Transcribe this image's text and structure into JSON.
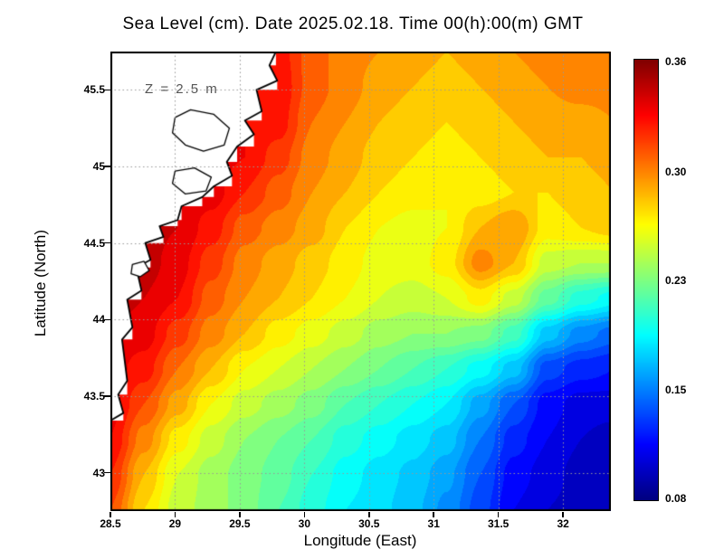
{
  "title": "Sea Level (cm). Date 2025.02.18. Time 00(h):00(m) GMT",
  "annotation": {
    "text": "Z = 2.5 m"
  },
  "axes": {
    "x": {
      "label": "Longitude (East)",
      "tick_labels": [
        "28.5",
        "29",
        "29.5",
        "30",
        "30.5",
        "31",
        "31.5",
        "32"
      ],
      "range": [
        28.5,
        32.37
      ]
    },
    "y": {
      "label": "Latitude (North)",
      "tick_labels": [
        "43",
        "43.5",
        "44",
        "44.5",
        "45",
        "45.5"
      ],
      "range": [
        42.75,
        45.75
      ]
    }
  },
  "chart_data": {
    "type": "heatmap",
    "title": "Sea Level (cm). Date 2025.02.18. Time 00(h):00(m) GMT",
    "xlabel": "Longitude (East)",
    "ylabel": "Latitude (North)",
    "units": "cm",
    "colormap": "jet",
    "grid": true,
    "x_lon": [
      28.5,
      28.76,
      29.02,
      29.28,
      29.54,
      29.8,
      30.06,
      30.32,
      30.58,
      30.84,
      31.1,
      31.36,
      31.62,
      31.88,
      32.14,
      32.4
    ],
    "y_lat": [
      45.75,
      45.52,
      45.29,
      45.06,
      44.83,
      44.6,
      44.37,
      44.14,
      43.91,
      43.68,
      43.45,
      43.22,
      42.99,
      42.76
    ],
    "values": [
      [
        0.34,
        0.34,
        0.34,
        0.338,
        0.335,
        0.33,
        0.31,
        0.3,
        0.295,
        0.29,
        0.285,
        0.29,
        0.295,
        0.3,
        0.3,
        0.3
      ],
      [
        0.34,
        0.34,
        0.34,
        0.338,
        0.335,
        0.333,
        0.31,
        0.3,
        0.29,
        0.285,
        0.28,
        0.285,
        0.29,
        0.295,
        0.3,
        0.3
      ],
      [
        0.342,
        0.342,
        0.34,
        0.338,
        0.335,
        0.33,
        0.305,
        0.295,
        0.285,
        0.28,
        0.275,
        0.28,
        0.285,
        0.29,
        0.29,
        0.295
      ],
      [
        0.345,
        0.345,
        0.342,
        0.34,
        0.335,
        0.32,
        0.3,
        0.29,
        0.28,
        0.275,
        0.27,
        0.275,
        0.28,
        0.285,
        0.285,
        0.29
      ],
      [
        0.347,
        0.347,
        0.345,
        0.34,
        0.325,
        0.31,
        0.295,
        0.285,
        0.275,
        0.27,
        0.265,
        0.27,
        0.275,
        0.275,
        0.28,
        0.285
      ],
      [
        0.35,
        0.35,
        0.345,
        0.33,
        0.31,
        0.3,
        0.29,
        0.275,
        0.265,
        0.26,
        0.265,
        0.285,
        0.295,
        0.27,
        0.275,
        0.28
      ],
      [
        0.35,
        0.35,
        0.34,
        0.32,
        0.3,
        0.29,
        0.28,
        0.27,
        0.26,
        0.26,
        0.27,
        0.3,
        0.285,
        0.25,
        0.245,
        0.245
      ],
      [
        0.35,
        0.345,
        0.335,
        0.31,
        0.295,
        0.285,
        0.275,
        0.265,
        0.255,
        0.25,
        0.255,
        0.27,
        0.25,
        0.22,
        0.2,
        0.19
      ],
      [
        0.345,
        0.34,
        0.32,
        0.3,
        0.285,
        0.27,
        0.26,
        0.25,
        0.24,
        0.235,
        0.235,
        0.23,
        0.21,
        0.17,
        0.15,
        0.14
      ],
      [
        0.34,
        0.33,
        0.305,
        0.285,
        0.265,
        0.255,
        0.245,
        0.235,
        0.225,
        0.215,
        0.205,
        0.19,
        0.17,
        0.13,
        0.12,
        0.115
      ],
      [
        0.34,
        0.315,
        0.29,
        0.265,
        0.25,
        0.24,
        0.23,
        0.215,
        0.205,
        0.195,
        0.185,
        0.16,
        0.135,
        0.11,
        0.1,
        0.1
      ],
      [
        0.335,
        0.3,
        0.27,
        0.25,
        0.235,
        0.225,
        0.215,
        0.2,
        0.19,
        0.18,
        0.17,
        0.145,
        0.12,
        0.105,
        0.095,
        0.09
      ],
      [
        0.325,
        0.285,
        0.255,
        0.24,
        0.23,
        0.22,
        0.205,
        0.19,
        0.18,
        0.172,
        0.158,
        0.135,
        0.11,
        0.1,
        0.09,
        0.085
      ],
      [
        0.315,
        0.275,
        0.25,
        0.24,
        0.23,
        0.215,
        0.2,
        0.185,
        0.178,
        0.168,
        0.152,
        0.13,
        0.105,
        0.095,
        0.09,
        0.085
      ]
    ],
    "color_scale": {
      "values": [
        0.08,
        0.15,
        0.23,
        0.3,
        0.36
      ],
      "t": [
        0.03,
        0.26,
        0.5,
        0.745,
        0.97
      ]
    },
    "colorbar": {
      "labels": [
        "0.36",
        "0.30",
        "0.23",
        "0.15",
        "0.08"
      ],
      "positions": [
        0.006,
        0.257,
        0.503,
        0.751,
        0.998
      ]
    },
    "coastline": [
      [
        29.78,
        45.75
      ],
      [
        29.73,
        45.66
      ],
      [
        29.79,
        45.56
      ],
      [
        29.63,
        45.5
      ],
      [
        29.67,
        45.36
      ],
      [
        29.54,
        45.3
      ],
      [
        29.61,
        45.21
      ],
      [
        29.48,
        45.13
      ],
      [
        29.4,
        45.03
      ],
      [
        29.44,
        44.94
      ],
      [
        29.3,
        44.87
      ],
      [
        29.21,
        44.8
      ],
      [
        29.05,
        44.74
      ],
      [
        29.02,
        44.65
      ],
      [
        28.88,
        44.61
      ],
      [
        28.91,
        44.54
      ],
      [
        28.77,
        44.5
      ],
      [
        28.81,
        44.39
      ],
      [
        28.7,
        44.34
      ],
      [
        28.74,
        44.19
      ],
      [
        28.63,
        44.13
      ],
      [
        28.67,
        43.95
      ],
      [
        28.59,
        43.87
      ],
      [
        28.63,
        43.6
      ],
      [
        28.56,
        43.51
      ],
      [
        28.6,
        43.39
      ],
      [
        28.5,
        43.34
      ]
    ],
    "lakes": [
      [
        [
          29.0,
          45.32
        ],
        [
          29.12,
          45.37
        ],
        [
          29.3,
          45.34
        ],
        [
          29.42,
          45.25
        ],
        [
          29.38,
          45.14
        ],
        [
          29.22,
          45.1
        ],
        [
          29.08,
          45.14
        ],
        [
          28.98,
          45.22
        ]
      ],
      [
        [
          29.0,
          44.97
        ],
        [
          29.15,
          44.99
        ],
        [
          29.28,
          44.93
        ],
        [
          29.24,
          44.84
        ],
        [
          29.08,
          44.82
        ],
        [
          28.98,
          44.89
        ]
      ],
      [
        [
          28.67,
          44.36
        ],
        [
          28.76,
          44.38
        ],
        [
          28.8,
          44.32
        ],
        [
          28.73,
          44.28
        ],
        [
          28.66,
          44.3
        ]
      ]
    ]
  },
  "colors": {
    "background": "#ffffff",
    "land": "#ffffff",
    "coast": "#000000",
    "gridline": "#999999",
    "border": "#000000",
    "text": "#000000",
    "annotation": "#555555"
  }
}
